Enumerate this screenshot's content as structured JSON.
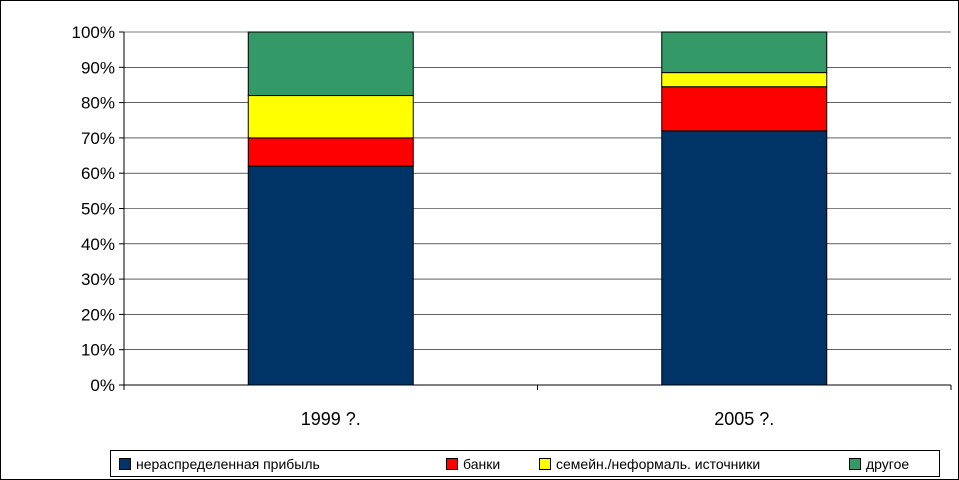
{
  "chart_data": {
    "type": "bar",
    "stacked": true,
    "categories": [
      "1999 ?.",
      "2005 ?."
    ],
    "series": [
      {
        "name": "нераспределенная прибыль",
        "values": [
          62,
          72
        ],
        "color": "#003366"
      },
      {
        "name": "банки",
        "values": [
          8,
          12.5
        ],
        "color": "#ff0000"
      },
      {
        "name": "семейн./неформаль. источники",
        "values": [
          12,
          4
        ],
        "color": "#ffff00"
      },
      {
        "name": "другое",
        "values": [
          18,
          11.5
        ],
        "color": "#339966"
      }
    ],
    "yticks": [
      "0%",
      "10%",
      "20%",
      "30%",
      "40%",
      "50%",
      "60%",
      "70%",
      "80%",
      "90%",
      "100%"
    ],
    "ylim": [
      0,
      100
    ],
    "grid": true,
    "legend_position": "bottom"
  }
}
